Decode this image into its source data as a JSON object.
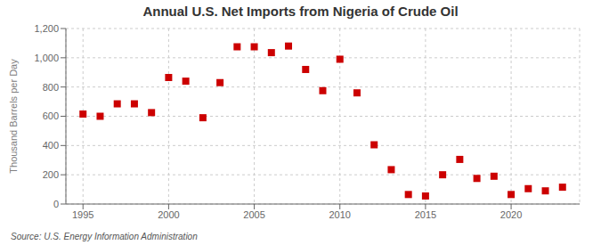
{
  "chart_data": {
    "type": "scatter",
    "title": "Annual U.S. Net Imports from Nigeria of Crude Oil",
    "ylabel": "Thousand Barrels per Day",
    "annotations": [
      "Source: U.S. Energy Information Administration"
    ],
    "x": [
      1995,
      1996,
      1997,
      1998,
      1999,
      2000,
      2001,
      2002,
      2003,
      2004,
      2005,
      2006,
      2007,
      2008,
      2009,
      2010,
      2011,
      2012,
      2013,
      2014,
      2015,
      2016,
      2017,
      2018,
      2019,
      2020,
      2021,
      2022,
      2023
    ],
    "values": [
      615,
      600,
      685,
      685,
      625,
      865,
      840,
      590,
      830,
      1075,
      1075,
      1035,
      1080,
      920,
      775,
      990,
      760,
      405,
      235,
      65,
      55,
      200,
      305,
      175,
      190,
      65,
      105,
      90,
      115
    ],
    "color": "#cc0000",
    "marker": "square",
    "xlim": [
      1994,
      2024
    ],
    "xticks": [
      1995,
      2000,
      2005,
      2010,
      2015,
      2020
    ],
    "ylim": [
      0,
      1200
    ],
    "yticks": [
      0,
      200,
      400,
      600,
      800,
      {
        "value": 1000,
        "label": "1,000"
      },
      {
        "value": 1200,
        "label": "1,200"
      }
    ],
    "grid": true
  }
}
